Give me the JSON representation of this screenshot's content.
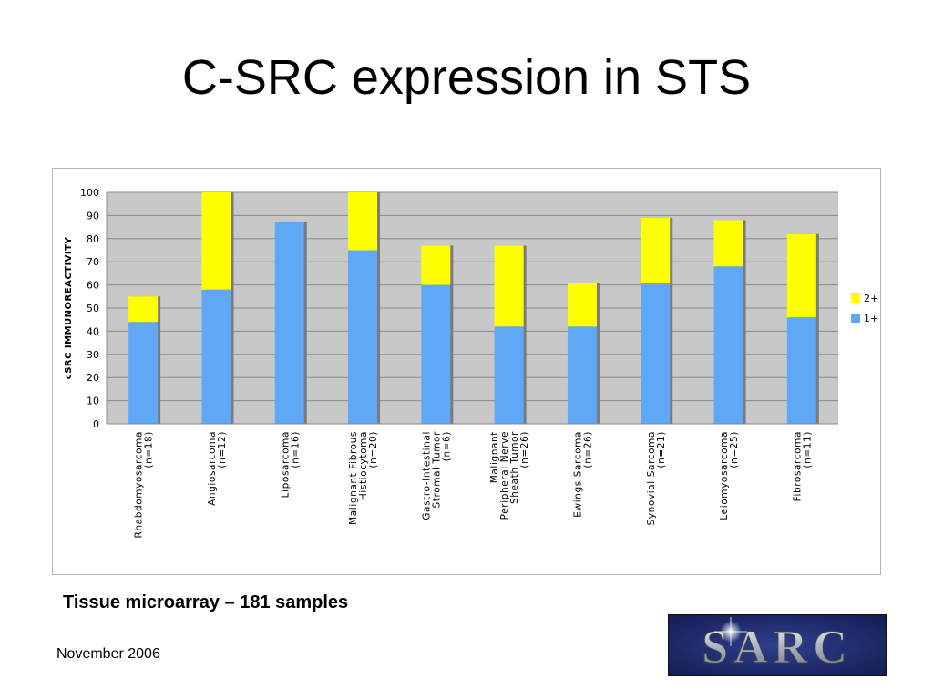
{
  "slide": {
    "title": "C-SRC expression in STS",
    "subtitle": "Tissue microarray – 181 samples",
    "date": "November 2006",
    "logo_text": "SARC"
  },
  "colors": {
    "series_1plus": "#5fa8f5",
    "series_2plus": "#ffff00",
    "plot_bg": "#c8c8c8",
    "bar_shadow": "#7a7a7a",
    "logo_bg": "#1c2a6e",
    "logo_text": "#c9ced8"
  },
  "chart_data": {
    "type": "bar",
    "stacked": true,
    "ylabel": "cSRC IMMUNOREACTIVITY",
    "xlabel": "",
    "ylim": [
      0,
      100
    ],
    "yticks": [
      0,
      10,
      20,
      30,
      40,
      50,
      60,
      70,
      80,
      90,
      100
    ],
    "grid": true,
    "legend_position": "right",
    "categories": [
      [
        "Rhabdomyosarcoma",
        "(n=18)"
      ],
      [
        "Angiosarcoma",
        "(n=12)"
      ],
      [
        "Liposarcoma",
        "(n=16)"
      ],
      [
        "Malignant Fibrous",
        "Histiocytoma",
        "(n=20)"
      ],
      [
        "Gastro-Intestinal",
        "Stromal Tumor",
        "(n=6)"
      ],
      [
        "Malignant",
        "Peripheral Nerve",
        "Sheath Tumor",
        "(n=26)"
      ],
      [
        "Ewings Sarcoma",
        "(n=26)"
      ],
      [
        "Synovial Sarcoma",
        "(n=21)"
      ],
      [
        "Leiomyosarcoma",
        "(n=25)"
      ],
      [
        "Fibrosarcoma",
        "(n=11)"
      ]
    ],
    "series": [
      {
        "name": "1+",
        "values": [
          44,
          58,
          87,
          75,
          60,
          42,
          42,
          61,
          68,
          46
        ]
      },
      {
        "name": "2+",
        "values": [
          11,
          42,
          0,
          25,
          17,
          35,
          19,
          28,
          20,
          36
        ]
      }
    ],
    "legend": [
      "2+",
      "1+"
    ]
  }
}
